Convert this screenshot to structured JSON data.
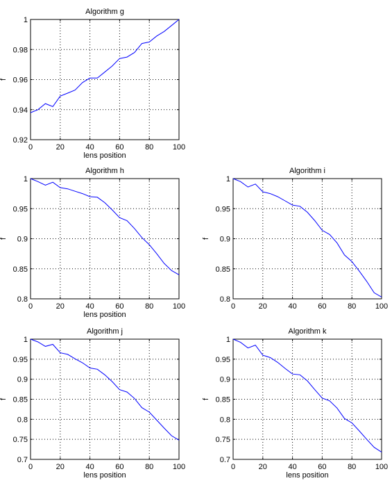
{
  "colors": {
    "series": "#0000ff",
    "axes": "#000000",
    "background": "#ffffff"
  },
  "chart_data": [
    {
      "id": "g",
      "type": "line",
      "title": "Algorithm g",
      "xlabel": "lens position",
      "ylabel": "f",
      "xlim": [
        0,
        100
      ],
      "ylim": [
        0.92,
        1.0
      ],
      "xticks": [
        0,
        20,
        40,
        60,
        80,
        100
      ],
      "xtick_labels": [
        "0",
        "20",
        "40",
        "60",
        "80",
        "100"
      ],
      "yticks": [
        0.92,
        0.94,
        0.96,
        0.98,
        1.0
      ],
      "ytick_labels": [
        "0.92",
        "0.94",
        "0.96",
        "0.98",
        "1"
      ],
      "grid": true,
      "series": [
        {
          "x": [
            0,
            5,
            10,
            15,
            20,
            25,
            30,
            35,
            40,
            45,
            50,
            55,
            60,
            65,
            70,
            75,
            80,
            85,
            90,
            95,
            100
          ],
          "values": [
            0.938,
            0.94,
            0.944,
            0.942,
            0.949,
            0.951,
            0.953,
            0.958,
            0.961,
            0.961,
            0.965,
            0.969,
            0.974,
            0.975,
            0.978,
            0.984,
            0.985,
            0.989,
            0.992,
            0.996,
            1.0
          ]
        }
      ]
    },
    {
      "id": "h",
      "type": "line",
      "title": "Algorithm h",
      "xlabel": "lens position",
      "ylabel": "f",
      "xlim": [
        0,
        100
      ],
      "ylim": [
        0.8,
        1.0
      ],
      "xticks": [
        0,
        20,
        40,
        60,
        80,
        100
      ],
      "xtick_labels": [
        "0",
        "20",
        "40",
        "60",
        "80",
        "100"
      ],
      "yticks": [
        0.8,
        0.85,
        0.9,
        0.95,
        1.0
      ],
      "ytick_labels": [
        "0.8",
        "0.85",
        "0.9",
        "0.95",
        "1"
      ],
      "grid": true,
      "series": [
        {
          "x": [
            0,
            5,
            10,
            15,
            20,
            25,
            30,
            35,
            40,
            45,
            50,
            55,
            60,
            65,
            70,
            75,
            80,
            85,
            90,
            95,
            100
          ],
          "values": [
            1.0,
            0.995,
            0.989,
            0.994,
            0.985,
            0.983,
            0.979,
            0.975,
            0.97,
            0.969,
            0.96,
            0.948,
            0.935,
            0.93,
            0.917,
            0.902,
            0.89,
            0.875,
            0.859,
            0.847,
            0.84
          ]
        }
      ]
    },
    {
      "id": "i",
      "type": "line",
      "title": "Algorithm i",
      "xlabel": "",
      "ylabel": "f",
      "xlim": [
        0,
        100
      ],
      "ylim": [
        0.8,
        1.0
      ],
      "xticks": [
        0,
        20,
        40,
        60,
        80,
        100
      ],
      "xtick_labels": [
        "0",
        "20",
        "40",
        "60",
        "80",
        "100"
      ],
      "yticks": [
        0.8,
        0.85,
        0.9,
        0.95,
        1.0
      ],
      "ytick_labels": [
        "0.8",
        "0.85",
        "0.9",
        "0.95",
        "1"
      ],
      "grid": true,
      "series": [
        {
          "x": [
            0,
            5,
            10,
            15,
            20,
            25,
            30,
            35,
            40,
            45,
            50,
            55,
            60,
            65,
            70,
            75,
            80,
            85,
            90,
            95,
            100
          ],
          "values": [
            1.0,
            0.995,
            0.986,
            0.991,
            0.978,
            0.975,
            0.97,
            0.963,
            0.956,
            0.954,
            0.944,
            0.93,
            0.914,
            0.907,
            0.893,
            0.873,
            0.862,
            0.846,
            0.829,
            0.81,
            0.803
          ]
        }
      ]
    },
    {
      "id": "j",
      "type": "line",
      "title": "Algorithm j",
      "xlabel": "lens position",
      "ylabel": "f",
      "xlim": [
        0,
        100
      ],
      "ylim": [
        0.7,
        1.0
      ],
      "xticks": [
        0,
        20,
        40,
        60,
        80,
        100
      ],
      "xtick_labels": [
        "0",
        "20",
        "40",
        "60",
        "80",
        "100"
      ],
      "yticks": [
        0.7,
        0.75,
        0.8,
        0.85,
        0.9,
        0.95,
        1.0
      ],
      "ytick_labels": [
        "0.7",
        "0.75",
        "0.8",
        "0.85",
        "0.9",
        "0.95",
        "1"
      ],
      "grid": true,
      "series": [
        {
          "x": [
            0,
            5,
            10,
            15,
            20,
            25,
            30,
            35,
            40,
            45,
            50,
            55,
            60,
            65,
            70,
            75,
            80,
            85,
            90,
            95,
            100
          ],
          "values": [
            1.0,
            0.993,
            0.982,
            0.987,
            0.966,
            0.962,
            0.951,
            0.941,
            0.928,
            0.925,
            0.911,
            0.894,
            0.874,
            0.868,
            0.852,
            0.829,
            0.818,
            0.798,
            0.778,
            0.759,
            0.748
          ]
        }
      ]
    },
    {
      "id": "k",
      "type": "line",
      "title": "Algorithm k",
      "xlabel": "lens position",
      "ylabel": "f",
      "xlim": [
        0,
        100
      ],
      "ylim": [
        0.7,
        1.0
      ],
      "xticks": [
        0,
        20,
        40,
        60,
        80,
        100
      ],
      "xtick_labels": [
        "0",
        "20",
        "40",
        "60",
        "80",
        "100"
      ],
      "yticks": [
        0.7,
        0.75,
        0.8,
        0.85,
        0.9,
        0.95,
        1.0
      ],
      "ytick_labels": [
        "0.7",
        "0.75",
        "0.8",
        "0.85",
        "0.9",
        "0.95",
        "1"
      ],
      "grid": true,
      "series": [
        {
          "x": [
            0,
            5,
            10,
            15,
            20,
            25,
            30,
            35,
            40,
            45,
            50,
            55,
            60,
            65,
            70,
            75,
            80,
            85,
            90,
            95,
            100
          ],
          "values": [
            1.0,
            0.992,
            0.978,
            0.985,
            0.96,
            0.954,
            0.942,
            0.927,
            0.913,
            0.911,
            0.896,
            0.874,
            0.853,
            0.846,
            0.828,
            0.802,
            0.791,
            0.771,
            0.75,
            0.73,
            0.718
          ]
        }
      ]
    }
  ]
}
